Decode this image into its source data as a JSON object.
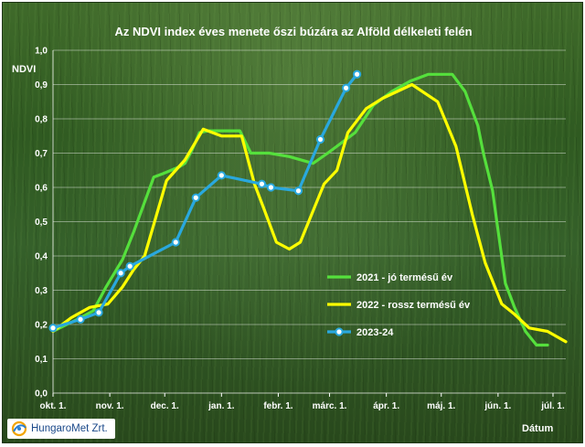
{
  "logo": {
    "text": "HungaroMet Zrt."
  },
  "chart_data": {
    "type": "line",
    "title": "Az NDVI index éves menete őszi búzára az Alföld délkeleti felén",
    "ylabel": "NDVI",
    "xlabel": "Dátum",
    "ylim": [
      0,
      1.0
    ],
    "yticks": [
      "0,0",
      "0,1",
      "0,2",
      "0,3",
      "0,4",
      "0,5",
      "0,6",
      "0,7",
      "0,8",
      "0,9",
      "1,0"
    ],
    "xticks": [
      "okt. 1.",
      "nov. 1.",
      "dec. 1.",
      "jan. 1.",
      "febr. 1.",
      "márc. 1.",
      "ápr. 1.",
      "máj. 1.",
      "jún. 1.",
      "júl. 1."
    ],
    "grid": "horizontal",
    "legend_position": "center-right",
    "series": [
      {
        "name": "2021 - jó termésű év",
        "color": "#55e03c",
        "x": [
          0,
          15,
          22,
          29,
          38,
          44,
          55,
          60,
          69,
          72,
          76,
          80,
          85,
          102,
          108,
          118,
          129,
          142,
          150,
          155,
          165,
          175,
          185,
          195,
          205,
          214,
          218,
          225,
          232,
          235,
          240,
          247,
          252,
          258,
          264,
          270
        ],
        "y": [
          0.18,
          0.22,
          0.24,
          0.31,
          0.39,
          0.47,
          0.63,
          0.64,
          0.66,
          0.67,
          0.71,
          0.76,
          0.765,
          0.765,
          0.7,
          0.7,
          0.69,
          0.67,
          0.7,
          0.72,
          0.76,
          0.84,
          0.88,
          0.91,
          0.93,
          0.93,
          0.93,
          0.88,
          0.78,
          0.7,
          0.59,
          0.32,
          0.25,
          0.18,
          0.14,
          0.14
        ]
      },
      {
        "name": "2022 - rossz termésű év",
        "color": "#ffff00",
        "x": [
          0,
          10,
          20,
          30,
          38,
          44,
          50,
          62,
          72,
          82,
          92,
          103,
          110,
          115,
          122,
          129,
          135,
          148,
          155,
          161,
          171,
          180,
          196,
          210,
          220,
          229,
          236,
          245,
          252,
          260,
          270,
          280
        ],
        "y": [
          0.18,
          0.22,
          0.25,
          0.26,
          0.31,
          0.36,
          0.4,
          0.62,
          0.68,
          0.77,
          0.75,
          0.75,
          0.61,
          0.54,
          0.44,
          0.42,
          0.44,
          0.61,
          0.65,
          0.76,
          0.83,
          0.86,
          0.9,
          0.85,
          0.72,
          0.52,
          0.38,
          0.26,
          0.23,
          0.19,
          0.18,
          0.15
        ]
      },
      {
        "name": "2023-24",
        "color": "#29a8de",
        "x": [
          0,
          15,
          25,
          37,
          42,
          67,
          78,
          92,
          114,
          119,
          134,
          146,
          160,
          166
        ],
        "y": [
          0.19,
          0.215,
          0.235,
          0.35,
          0.37,
          0.44,
          0.57,
          0.635,
          0.61,
          0.6,
          0.59,
          0.74,
          0.89,
          0.93
        ]
      }
    ]
  }
}
